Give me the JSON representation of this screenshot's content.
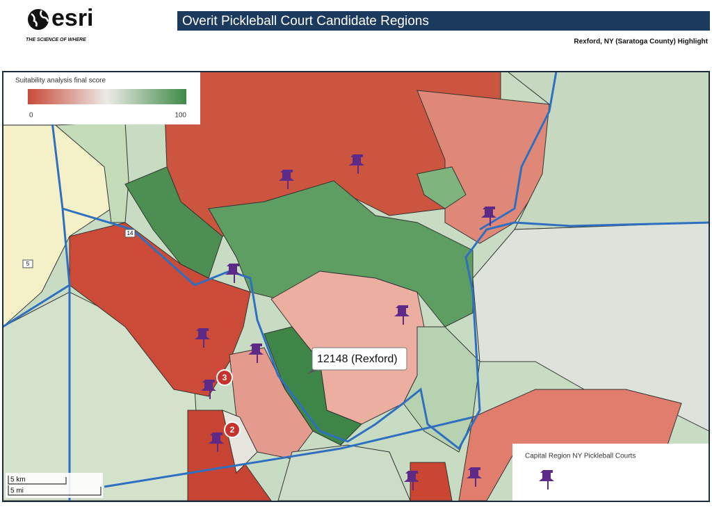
{
  "header": {
    "logo": "esri",
    "tagline": "THE SCIENCE OF WHERE",
    "title": "Overit Pickleball Court Candidate Regions",
    "subtitle": "Rexford, NY (Saratoga County) Highlight"
  },
  "map": {
    "legend": {
      "title": "Suitability analysis final score",
      "min_label": "0",
      "max_label": "100"
    },
    "callout": "12148 (Rexford)",
    "clusters": [
      "3",
      "2"
    ],
    "road_shields": [
      "14",
      "5"
    ],
    "point_legend": {
      "title": "Capital Region NY Pickleball Courts"
    },
    "scale": {
      "metric": "5 km",
      "imperial": "5 mi"
    }
  }
}
